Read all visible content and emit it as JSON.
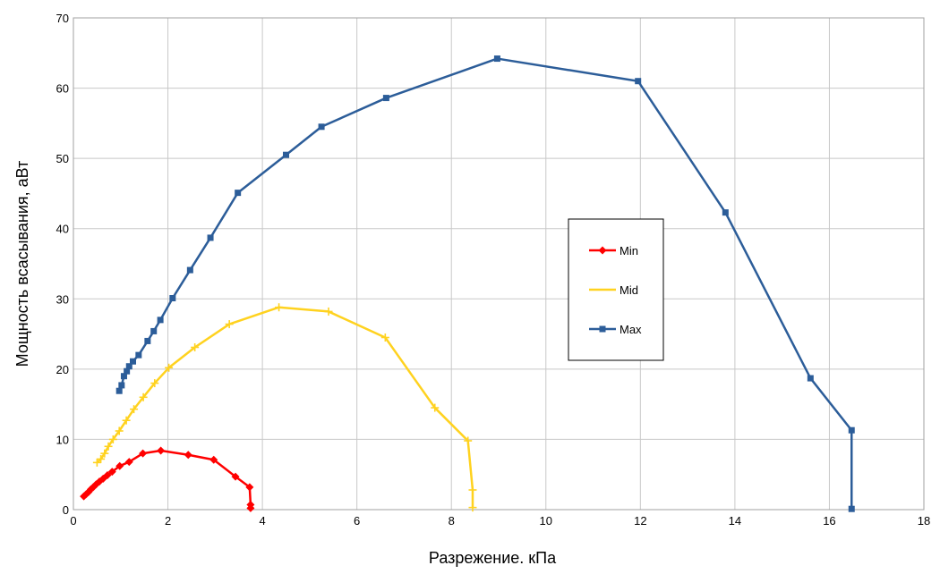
{
  "chart_data": {
    "type": "line",
    "title": "",
    "xlabel": "Разрежение. кПа",
    "ylabel": "Мощность всасывания, аВт",
    "xlim": [
      0,
      18
    ],
    "ylim": [
      0,
      70
    ],
    "x_ticks": [
      0,
      2,
      4,
      6,
      8,
      10,
      12,
      14,
      16,
      18
    ],
    "y_ticks": [
      0,
      10,
      20,
      30,
      40,
      50,
      60,
      70
    ],
    "grid": true,
    "legend_position": "right-center",
    "series": [
      {
        "name": "Min",
        "color": "#ff0000",
        "marker": "diamond",
        "points": [
          [
            0.22,
            1.9
          ],
          [
            0.27,
            2.2
          ],
          [
            0.32,
            2.5
          ],
          [
            0.37,
            2.9
          ],
          [
            0.42,
            3.2
          ],
          [
            0.48,
            3.6
          ],
          [
            0.55,
            4.0
          ],
          [
            0.63,
            4.4
          ],
          [
            0.72,
            4.9
          ],
          [
            0.82,
            5.4
          ],
          [
            0.98,
            6.2
          ],
          [
            1.18,
            6.8
          ],
          [
            1.47,
            8.0
          ],
          [
            1.85,
            8.4
          ],
          [
            2.43,
            7.8
          ],
          [
            2.97,
            7.1
          ],
          [
            3.43,
            4.7
          ],
          [
            3.73,
            3.2
          ],
          [
            3.75,
            0.7
          ],
          [
            3.75,
            0.2
          ]
        ]
      },
      {
        "name": "Mid",
        "color": "#ffd21f",
        "marker": "cross",
        "points": [
          [
            0.5,
            6.7
          ],
          [
            0.58,
            7.2
          ],
          [
            0.66,
            8.0
          ],
          [
            0.74,
            9.0
          ],
          [
            0.84,
            10.0
          ],
          [
            0.97,
            11.2
          ],
          [
            1.12,
            12.7
          ],
          [
            1.28,
            14.3
          ],
          [
            1.48,
            16.0
          ],
          [
            1.72,
            18.0
          ],
          [
            2.02,
            20.2
          ],
          [
            2.57,
            23.1
          ],
          [
            3.3,
            26.4
          ],
          [
            4.35,
            28.8
          ],
          [
            5.4,
            28.2
          ],
          [
            6.6,
            24.5
          ],
          [
            7.65,
            14.5
          ],
          [
            8.35,
            9.8
          ],
          [
            8.45,
            2.8
          ],
          [
            8.45,
            0.3
          ]
        ]
      },
      {
        "name": "Max",
        "color": "#2c5d99",
        "marker": "square",
        "points": [
          [
            0.97,
            16.9
          ],
          [
            1.02,
            17.7
          ],
          [
            1.07,
            19.0
          ],
          [
            1.13,
            19.7
          ],
          [
            1.18,
            20.4
          ],
          [
            1.26,
            21.1
          ],
          [
            1.38,
            22.0
          ],
          [
            1.57,
            24.0
          ],
          [
            1.7,
            25.4
          ],
          [
            1.84,
            27.0
          ],
          [
            2.1,
            30.1
          ],
          [
            2.47,
            34.1
          ],
          [
            2.9,
            38.7
          ],
          [
            3.48,
            45.1
          ],
          [
            4.5,
            50.5
          ],
          [
            5.25,
            54.5
          ],
          [
            6.62,
            58.6
          ],
          [
            8.97,
            64.2
          ],
          [
            11.95,
            61.0
          ],
          [
            13.8,
            42.3
          ],
          [
            15.6,
            18.7
          ],
          [
            16.47,
            11.3
          ],
          [
            16.47,
            0.1
          ]
        ]
      }
    ]
  }
}
